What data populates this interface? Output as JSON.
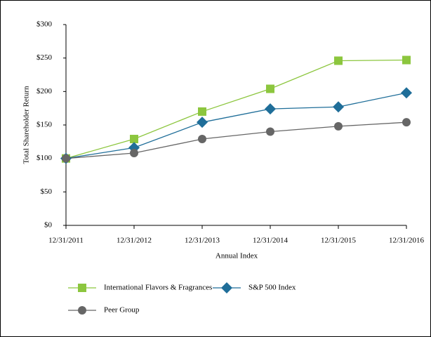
{
  "chart_data": {
    "type": "line",
    "x_label": "Annual Index",
    "y_label": "Total Shareholder Return",
    "categories": [
      "12/31/2011",
      "12/31/2012",
      "12/31/2013",
      "12/31/2014",
      "12/31/2015",
      "12/31/2016"
    ],
    "series": [
      {
        "name": "International Flavors & Fragrances",
        "color": "#8cc63e",
        "marker": "square",
        "values": [
          100,
          129,
          170,
          204,
          246,
          247
        ]
      },
      {
        "name": "S&P 500 Index",
        "color": "#1f6e99",
        "marker": "diamond",
        "values": [
          100,
          116,
          154,
          174,
          177,
          198
        ]
      },
      {
        "name": "Peer Group",
        "color": "#666666",
        "marker": "circle",
        "values": [
          100,
          108,
          129,
          140,
          148,
          154
        ]
      }
    ],
    "ylim": [
      0,
      300
    ],
    "yticks": [
      {
        "value": 0,
        "label": "$0"
      },
      {
        "value": 50,
        "label": "$50"
      },
      {
        "value": 100,
        "label": "$100"
      },
      {
        "value": 150,
        "label": "$150"
      },
      {
        "value": 200,
        "label": "$200"
      },
      {
        "value": 250,
        "label": "$250"
      },
      {
        "value": 300,
        "label": "$300"
      }
    ],
    "grid": false,
    "legend": "bottom"
  }
}
